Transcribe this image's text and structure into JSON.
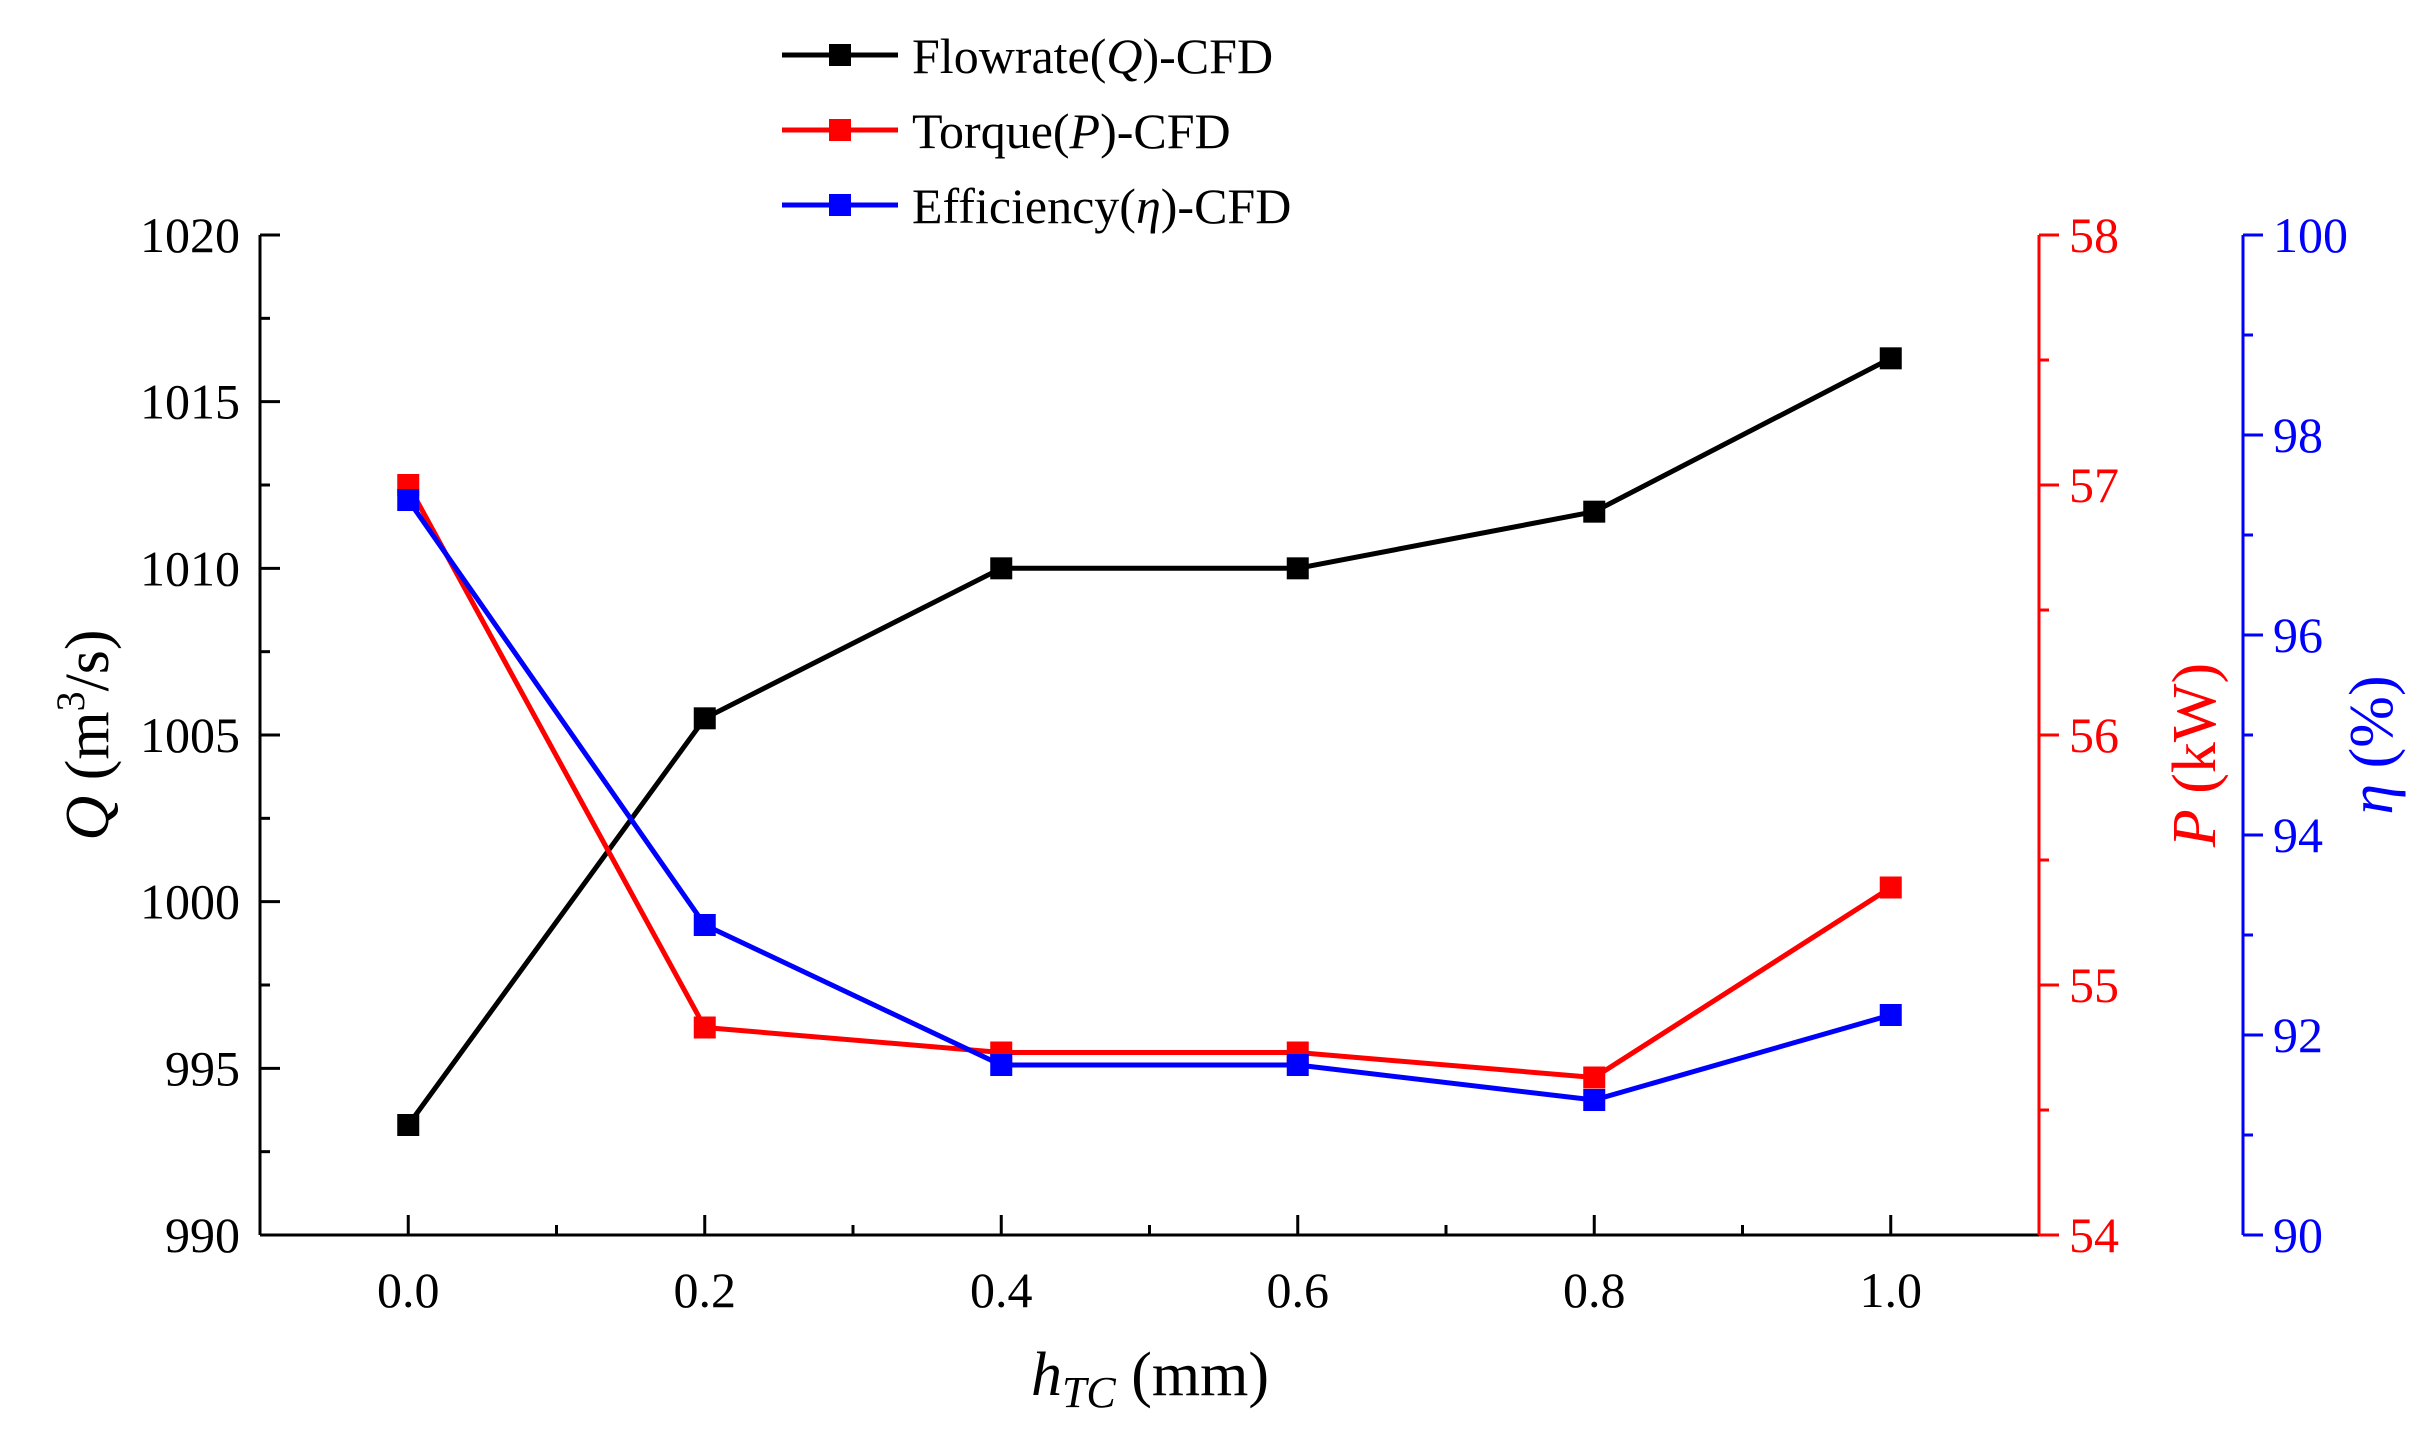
{
  "chart_data": {
    "type": "line",
    "x": [
      0.0,
      0.2,
      0.4,
      0.6,
      0.8,
      1.0
    ],
    "x_tick_labels": [
      "0.0",
      "0.2",
      "0.4",
      "0.6",
      "0.8",
      "1.0"
    ],
    "xlim": [
      -0.1,
      1.1
    ],
    "xlabel": {
      "main": "h",
      "sub": "TC",
      "unit": " (mm)"
    },
    "axes": {
      "Q": {
        "label": {
          "sym": "Q",
          "pre": " (m",
          "sup": "3",
          "post": "/s)"
        },
        "ylim": [
          990,
          1020
        ],
        "ticks": [
          "990",
          "995",
          "1000",
          "1005",
          "1010",
          "1015",
          "1020"
        ],
        "color": "#000000"
      },
      "P": {
        "label": {
          "sym": "P",
          "post": " (kW)"
        },
        "ylim": [
          54,
          58
        ],
        "ticks": [
          "54",
          "55",
          "56",
          "57",
          "58"
        ],
        "color": "#ff0000"
      },
      "eta": {
        "label": {
          "sym": "η",
          "post": " (%)"
        },
        "ylim": [
          90,
          100
        ],
        "ticks": [
          "90",
          "92",
          "94",
          "96",
          "98",
          "100"
        ],
        "color": "#0000ff"
      }
    },
    "series": [
      {
        "name": "Flowrate",
        "sym": "Q",
        "suffix": "-CFD",
        "axis": "Q",
        "color": "#000000",
        "values": [
          993.3,
          1005.5,
          1010.0,
          1010.0,
          1011.7,
          1016.3
        ]
      },
      {
        "name": "Torque",
        "sym": "P",
        "suffix": "-CFD",
        "axis": "P",
        "color": "#ff0000",
        "values": [
          57.0,
          54.83,
          54.73,
          54.73,
          54.63,
          55.39
        ]
      },
      {
        "name": "Efficiency",
        "sym": "η",
        "suffix": "-CFD",
        "axis": "eta",
        "color": "#0000ff",
        "values": [
          97.35,
          93.1,
          91.7,
          91.7,
          91.35,
          92.2
        ]
      }
    ],
    "legend_position": "top-center"
  }
}
